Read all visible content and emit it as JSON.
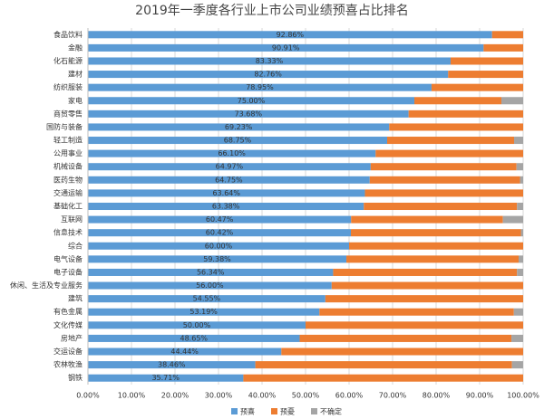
{
  "chart_data": {
    "type": "stacked_barh",
    "title": "2019年一季度各行业上市公司业绩预喜占比排名",
    "categories": [
      "食品饮料",
      "金融",
      "化石能源",
      "建材",
      "纺织服装",
      "家电",
      "商贸零售",
      "国防与装备",
      "轻工制造",
      "公用事业",
      "机械设备",
      "医药生物",
      "交通运输",
      "基础化工",
      "互联网",
      "信息技术",
      "综合",
      "电气设备",
      "电子设备",
      "休闲、生活及专业服务",
      "建筑",
      "有色金属",
      "文化传媒",
      "房地产",
      "交运设备",
      "农林牧渔",
      "钢铁"
    ],
    "series": [
      {
        "name": "预喜",
        "color": "#5b9bd5",
        "values": [
          92.86,
          90.91,
          83.33,
          82.76,
          78.95,
          75.0,
          73.68,
          69.23,
          68.75,
          66.1,
          64.97,
          64.75,
          63.64,
          63.38,
          60.47,
          60.42,
          60.0,
          59.38,
          56.34,
          56.0,
          54.55,
          53.19,
          50.0,
          48.65,
          44.44,
          38.46,
          35.71
        ],
        "value_labels": [
          "92.86%",
          "90.91%",
          "83.33%",
          "82.76%",
          "78.95%",
          "75.00%",
          "73.68%",
          "69.23%",
          "68.75%",
          "66.10%",
          "64.97%",
          "64.75%",
          "63.64%",
          "63.38%",
          "60.47%",
          "60.42%",
          "60.00%",
          "59.38%",
          "56.34%",
          "56.00%",
          "54.55%",
          "53.19%",
          "50.00%",
          "48.65%",
          "44.44%",
          "38.46%",
          "35.71%"
        ]
      },
      {
        "name": "预憂",
        "color": "#ed7d31",
        "values": [
          7.14,
          9.09,
          16.67,
          17.24,
          21.05,
          20.0,
          26.32,
          30.77,
          29.17,
          33.9,
          33.51,
          34.53,
          36.36,
          35.21,
          34.88,
          39.06,
          40.0,
          39.58,
          42.25,
          44.0,
          45.45,
          44.68,
          50.0,
          48.65,
          55.56,
          58.97,
          64.29
        ]
      },
      {
        "name": "不确定",
        "color": "#a5a5a5",
        "values": [
          0,
          0,
          0,
          0,
          0,
          5.0,
          0,
          0,
          2.08,
          0,
          1.52,
          0.72,
          0,
          1.41,
          4.65,
          0.52,
          0,
          1.04,
          1.41,
          0,
          0,
          2.13,
          0,
          2.7,
          0,
          2.56,
          0
        ]
      }
    ],
    "xlim": [
      0,
      100
    ],
    "xticks": [
      {
        "value": 0,
        "label": "0.00%"
      },
      {
        "value": 10,
        "label": "10.00%"
      },
      {
        "value": 20,
        "label": "20.00%"
      },
      {
        "value": 30,
        "label": "30.00%"
      },
      {
        "value": 40,
        "label": "40.00%"
      },
      {
        "value": 50,
        "label": "50.00%"
      },
      {
        "value": 60,
        "label": "60.00%"
      },
      {
        "value": 70,
        "label": "70.00%"
      },
      {
        "value": 80,
        "label": "80.00%"
      },
      {
        "value": 90,
        "label": "90.00%"
      },
      {
        "value": 100,
        "label": "100.00%"
      }
    ],
    "grid": true
  }
}
